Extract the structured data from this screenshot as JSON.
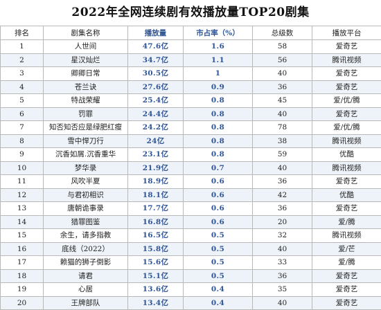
{
  "title": "2022年全网连续剧有效播放量TOP20剧集",
  "headers": [
    "排名",
    "剧集名称",
    "播放量",
    "市占率（%）",
    "总级数",
    "播放平台"
  ],
  "rows": [
    {
      "rank": "1",
      "name": "人世间",
      "views": "47.6亿",
      "share": "1.6",
      "episodes": "58",
      "platform": "爱奇艺"
    },
    {
      "rank": "2",
      "name": "星汉灿烂",
      "views": "34.7亿",
      "share": "1.1",
      "episodes": "56",
      "platform": "腾讯视频"
    },
    {
      "rank": "3",
      "name": "卿卿日常",
      "views": "30.5亿",
      "share": "1",
      "episodes": "40",
      "platform": "爱奇艺"
    },
    {
      "rank": "4",
      "name": "苍兰诀",
      "views": "27.6亿",
      "share": "0.9",
      "episodes": "36",
      "platform": "爱奇艺"
    },
    {
      "rank": "5",
      "name": "特战荣耀",
      "views": "25.4亿",
      "share": "0.8",
      "episodes": "45",
      "platform": "爱/优/腾"
    },
    {
      "rank": "6",
      "name": "罚罪",
      "views": "24.4亿",
      "share": "0.8",
      "episodes": "40",
      "platform": "爱奇艺"
    },
    {
      "rank": "7",
      "name": "知否知否应是绿肥红瘦",
      "views": "24.2亿",
      "share": "0.8",
      "episodes": "78",
      "platform": "爱/优/腾"
    },
    {
      "rank": "8",
      "name": "雪中悍刀行",
      "views": "24亿",
      "share": "0.8",
      "episodes": "38",
      "platform": "腾讯视频"
    },
    {
      "rank": "9",
      "name": "沉香如屑.沉香重华",
      "views": "23.1亿",
      "share": "0.8",
      "episodes": "59",
      "platform": "优酷"
    },
    {
      "rank": "10",
      "name": "梦华录",
      "views": "21.9亿",
      "share": "0.7",
      "episodes": "40",
      "platform": "腾讯视频"
    },
    {
      "rank": "11",
      "name": "风吹半夏",
      "views": "18.9亿",
      "share": "0.6",
      "episodes": "36",
      "platform": "爱奇艺"
    },
    {
      "rank": "12",
      "name": "与君初相识",
      "views": "18.1亿",
      "share": "0.6",
      "episodes": "42",
      "platform": "优酷"
    },
    {
      "rank": "13",
      "name": "唐朝诡事录",
      "views": "17.7亿",
      "share": "0.6",
      "episodes": "36",
      "platform": "爱奇艺"
    },
    {
      "rank": "14",
      "name": "猎罪图鉴",
      "views": "16.8亿",
      "share": "0.6",
      "episodes": "20",
      "platform": "爱/腾"
    },
    {
      "rank": "15",
      "name": "余生，请多指教",
      "views": "16.5亿",
      "share": "0.5",
      "episodes": "32",
      "platform": "腾讯视频"
    },
    {
      "rank": "16",
      "name": "底线（2022）",
      "views": "15.8亿",
      "share": "0.5",
      "episodes": "40",
      "platform": "爱/芒"
    },
    {
      "rank": "17",
      "name": "赖猫的狮子倒影",
      "views": "15.6亿",
      "share": "0.5",
      "episodes": "33",
      "platform": "爱/腾"
    },
    {
      "rank": "18",
      "name": "请君",
      "views": "15.1亿",
      "share": "0.5",
      "episodes": "36",
      "platform": "爱奇艺"
    },
    {
      "rank": "19",
      "name": "心居",
      "views": "13.6亿",
      "share": "0.4",
      "episodes": "35",
      "platform": "爱奇艺"
    },
    {
      "rank": "20",
      "name": "王牌部队",
      "views": "13.4亿",
      "share": "0.4",
      "episodes": "40",
      "platform": "爱奇艺"
    }
  ],
  "accent_color": "#2f5597"
}
